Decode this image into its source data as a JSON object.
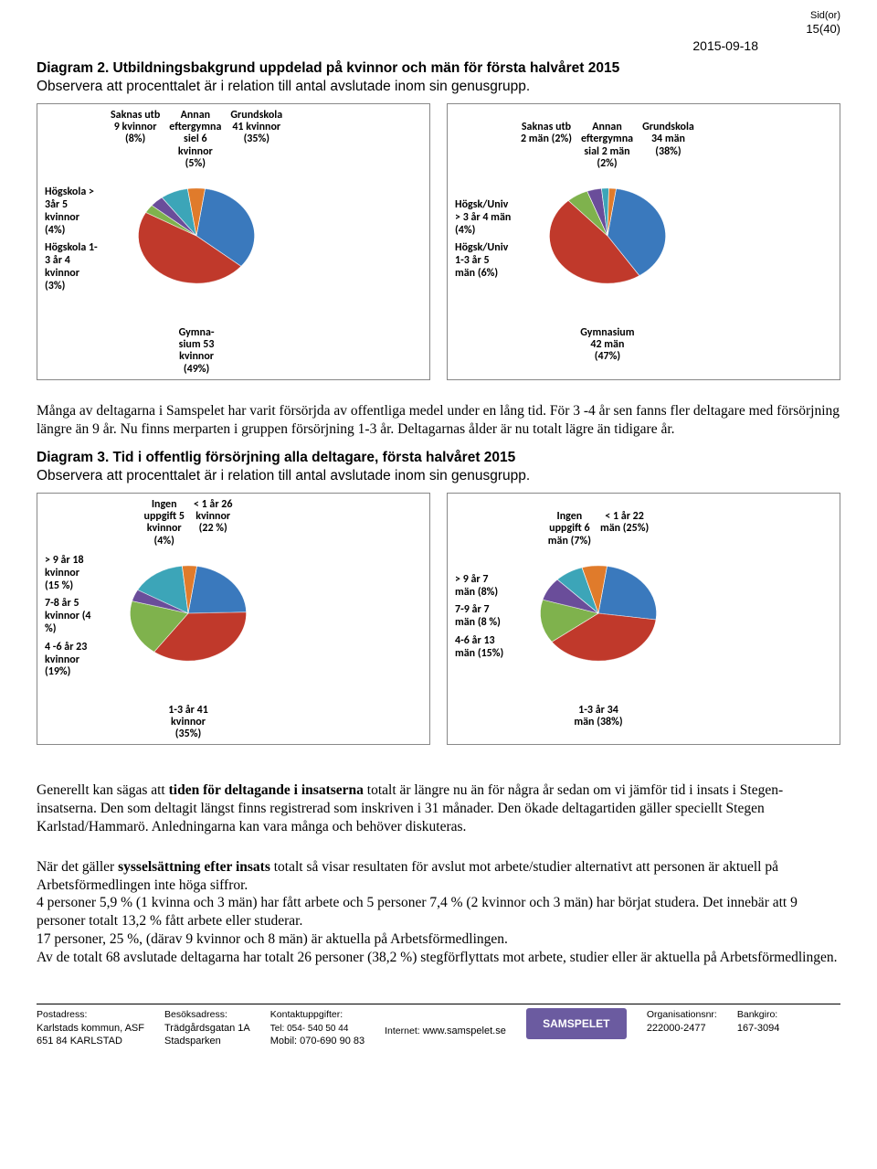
{
  "header": {
    "sidor_label": "Sid(or)",
    "pages": "15(40)",
    "date": "2015-09-18"
  },
  "diagram2": {
    "title": "Diagram 2. Utbildningsbakgrund uppdelad på kvinnor och män för första halvåret 2015",
    "note": "Observera att procenttalet är i relation till antal avslutade inom sin genusgrupp."
  },
  "chartA": {
    "type": "pie",
    "left_labels": [
      "Högskola >\n3år 5\nkvinnor\n(4%)",
      "Högskola 1-\n3 år 4\nkvinnor\n(3%)"
    ],
    "top_labels": [
      "Saknas utb\n9 kvinnor\n(8%)",
      "Annan\neftergymna\nsiel 6\nkvinnor\n(5%)",
      "Grundskola\n41 kvinnor\n(35%)"
    ],
    "bottom_label": "Gymna-\nsium 53\nkvinnor\n(49%)",
    "slices": [
      {
        "value": 35,
        "color": "#3a79bd"
      },
      {
        "value": 49,
        "color": "#c0392b"
      },
      {
        "value": 3,
        "color": "#7fb24d"
      },
      {
        "value": 4,
        "color": "#6a4d9a"
      },
      {
        "value": 8,
        "color": "#3ca5b8"
      },
      {
        "value": 5,
        "color": "#e07b2b"
      }
    ]
  },
  "chartB": {
    "type": "pie",
    "left_labels": [
      "Högsk/Univ\n> 3 år 4 män\n(4%)",
      "Högsk/Univ\n1-3 år 5\nmän (6%)"
    ],
    "top_labels": [
      "Saknas utb\n2 män (2%)",
      "Annan\neftergymna\nsial 2 män\n(2%)",
      "Grundskola\n34 män\n(38%)"
    ],
    "bottom_label": "Gymnasium\n42 män\n(47%)",
    "slices": [
      {
        "value": 38,
        "color": "#3a79bd"
      },
      {
        "value": 47,
        "color": "#c0392b"
      },
      {
        "value": 6,
        "color": "#7fb24d"
      },
      {
        "value": 4,
        "color": "#6a4d9a"
      },
      {
        "value": 2,
        "color": "#3ca5b8"
      },
      {
        "value": 2,
        "color": "#e07b2b"
      }
    ]
  },
  "mid_para": "Många av deltagarna i Samspelet har varit försörjda av offentliga medel under en lång tid. För 3 -4 år sen fanns fler deltagare med försörjning längre än 9 år. Nu finns merparten i gruppen försörjning 1-3 år. Deltagarnas ålder är nu totalt lägre än tidigare år.",
  "diagram3": {
    "title": "Diagram 3. Tid i offentlig försörjning alla deltagare, första halvåret 2015",
    "note": "Observera att procenttalet är i relation till antal avslutade inom sin genusgrupp."
  },
  "chartC": {
    "type": "pie",
    "left_labels": [
      "> 9 år 18\nkvinnor\n(15 %)",
      "7-8 år 5\nkvinnor (4\n%)",
      "4 -6 år 23\nkvinnor\n(19%)"
    ],
    "top_labels": [
      "Ingen\nuppgift 5\nkvinnor\n(4%)",
      "< 1 år 26\nkvinnor\n(22 %)"
    ],
    "bottom_label": "1-3 år 41\nkvinnor\n(35%)",
    "slices": [
      {
        "value": 22,
        "color": "#3a79bd"
      },
      {
        "value": 35,
        "color": "#c0392b"
      },
      {
        "value": 19,
        "color": "#7fb24d"
      },
      {
        "value": 4,
        "color": "#6a4d9a"
      },
      {
        "value": 15,
        "color": "#3ca5b8"
      },
      {
        "value": 4,
        "color": "#e07b2b"
      }
    ]
  },
  "chartD": {
    "type": "pie",
    "left_labels": [
      "> 9 år 7\nmän (8%)",
      "7-9 år 7\nmän (8 %)",
      "4-6 år 13\nmän (15%)"
    ],
    "top_labels": [
      "Ingen\nuppgift 6\nmän (7%)",
      "< 1 år 22\nmän (25%)"
    ],
    "bottom_label": "1-3 år 34\nmän (38%)",
    "slices": [
      {
        "value": 25,
        "color": "#3a79bd"
      },
      {
        "value": 38,
        "color": "#c0392b"
      },
      {
        "value": 15,
        "color": "#7fb24d"
      },
      {
        "value": 8,
        "color": "#6a4d9a"
      },
      {
        "value": 8,
        "color": "#3ca5b8"
      },
      {
        "value": 7,
        "color": "#e07b2b"
      }
    ]
  },
  "para2_html": "Generellt kan sägas att <b>tiden för deltagande i insatserna</b> totalt är längre nu än för några år sedan om vi jämför tid i insats i Stegen-insatserna. Den som deltagit längst finns registrerad som inskriven i 31 månader. Den ökade deltagartiden gäller speciellt Stegen Karlstad/Hammarö. Anledningarna kan vara många och behöver diskuteras.",
  "para3_html": "När det gäller <b>sysselsättning efter insats</b> totalt så visar resultaten för avslut mot arbete/studier alternativt att personen är aktuell på Arbetsförmedlingen inte höga siffror.<br>4 personer 5,9 % (1 kvinna och 3 män) har fått arbete och 5 personer 7,4 % (2 kvinnor och 3 män) har börjat studera.  Det innebär att 9 personer totalt 13,2 % fått arbete eller studerar.<br>17 personer, 25 %, (därav 9 kvinnor och 8 män) är aktuella på Arbetsförmedlingen.<br>Av de totalt 68 avslutade deltagarna har totalt 26 personer (38,2 %) stegförflyttats mot arbete, studier eller är aktuella på Arbetsförmedlingen.",
  "footer": {
    "c1_l": "Postadress:",
    "c1_1": "Karlstads kommun, ASF",
    "c1_2": "651 84  KARLSTAD",
    "c2_l": "Besöksadress:",
    "c2_1": "Trädgårdsgatan 1A",
    "c2_2": "Stadsparken",
    "c3_l": "Kontaktuppgifter:",
    "c3_1": "Tel: 054- 540 50 44",
    "c3_2": "Mobil: 070-690 90 83",
    "c4_l": "Internet:",
    "c4_1": "www.samspelet.se",
    "logo": "SAMSPELET",
    "c5_l": "Organisationsnr:",
    "c5_1": "222000-2477",
    "c6_l": "Bankgiro:",
    "c6_1": "167-3094"
  }
}
